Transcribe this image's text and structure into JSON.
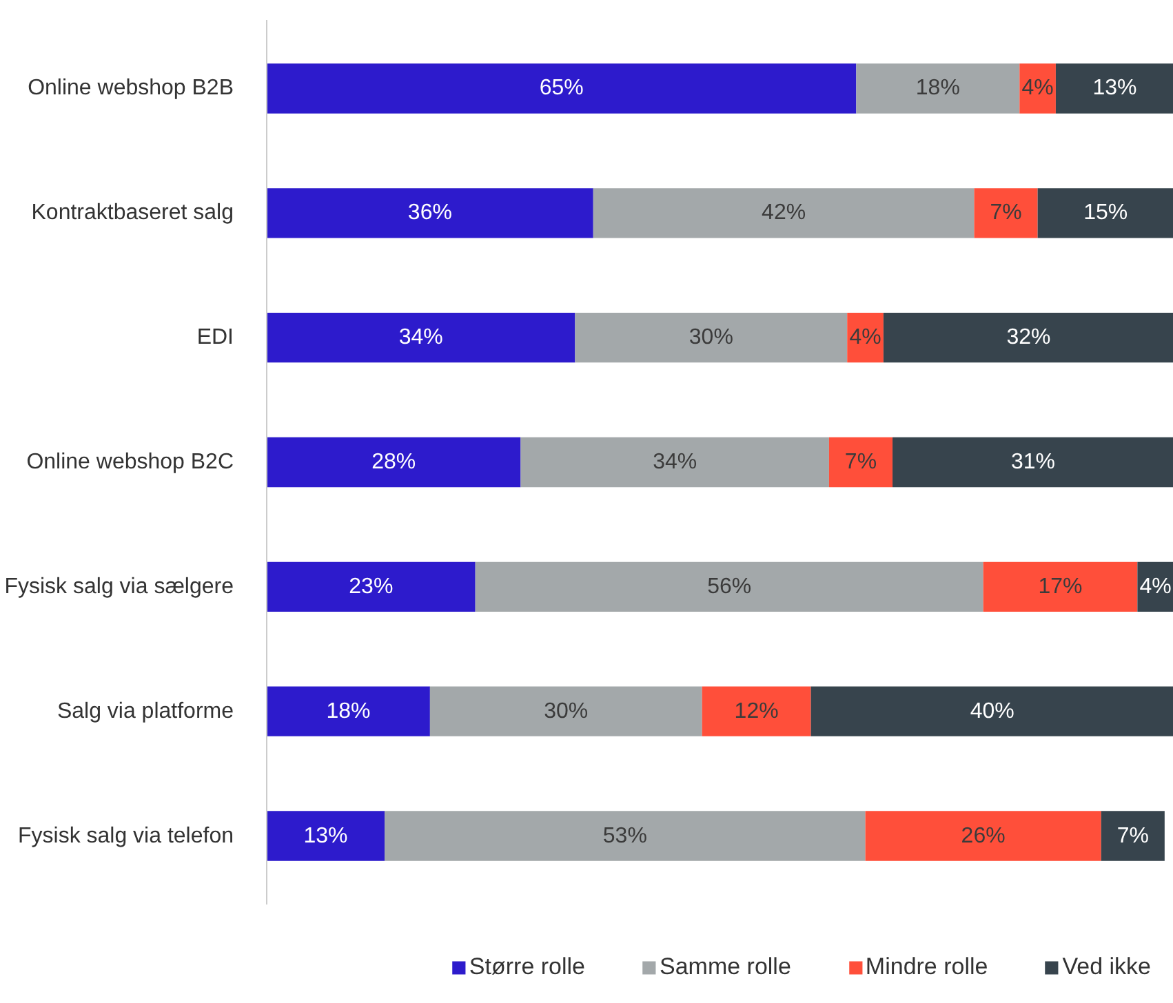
{
  "chart_data": {
    "type": "bar",
    "orientation": "horizontal",
    "stacked": true,
    "categories": [
      "Online webshop B2B",
      "Kontraktbaseret salg",
      "EDI",
      "Online webshop B2C",
      "Fysisk salg via sælgere",
      "Salg via platforme",
      "Fysisk salg via telefon"
    ],
    "series": [
      {
        "name": "Større rolle",
        "color": "#2d1bcc",
        "values": [
          65,
          36,
          34,
          28,
          23,
          18,
          13
        ],
        "value_labels": [
          "65%",
          "36%",
          "34%",
          "28%",
          "23%",
          "18%",
          "13%"
        ]
      },
      {
        "name": "Samme rolle",
        "color": "#a3a8aa",
        "values": [
          18,
          42,
          30,
          34,
          56,
          30,
          53
        ],
        "value_labels": [
          "18%",
          "42%",
          "30%",
          "34%",
          "56%",
          "30%",
          "53%"
        ]
      },
      {
        "name": "Mindre rolle",
        "color": "#ff4f3a",
        "values": [
          4,
          7,
          4,
          7,
          17,
          12,
          26
        ],
        "value_labels": [
          "4%",
          "7%",
          "4%",
          "7%",
          "17%",
          "12%",
          "26%"
        ]
      },
      {
        "name": "Ved ikke",
        "color": "#37444d",
        "values": [
          13,
          15,
          32,
          31,
          4,
          40,
          7
        ],
        "value_labels": [
          "13%",
          "15%",
          "32%",
          "31%",
          "4%",
          "40%",
          "7%"
        ]
      }
    ],
    "legend": "bottom",
    "grid": false,
    "tick_labels": "y"
  }
}
